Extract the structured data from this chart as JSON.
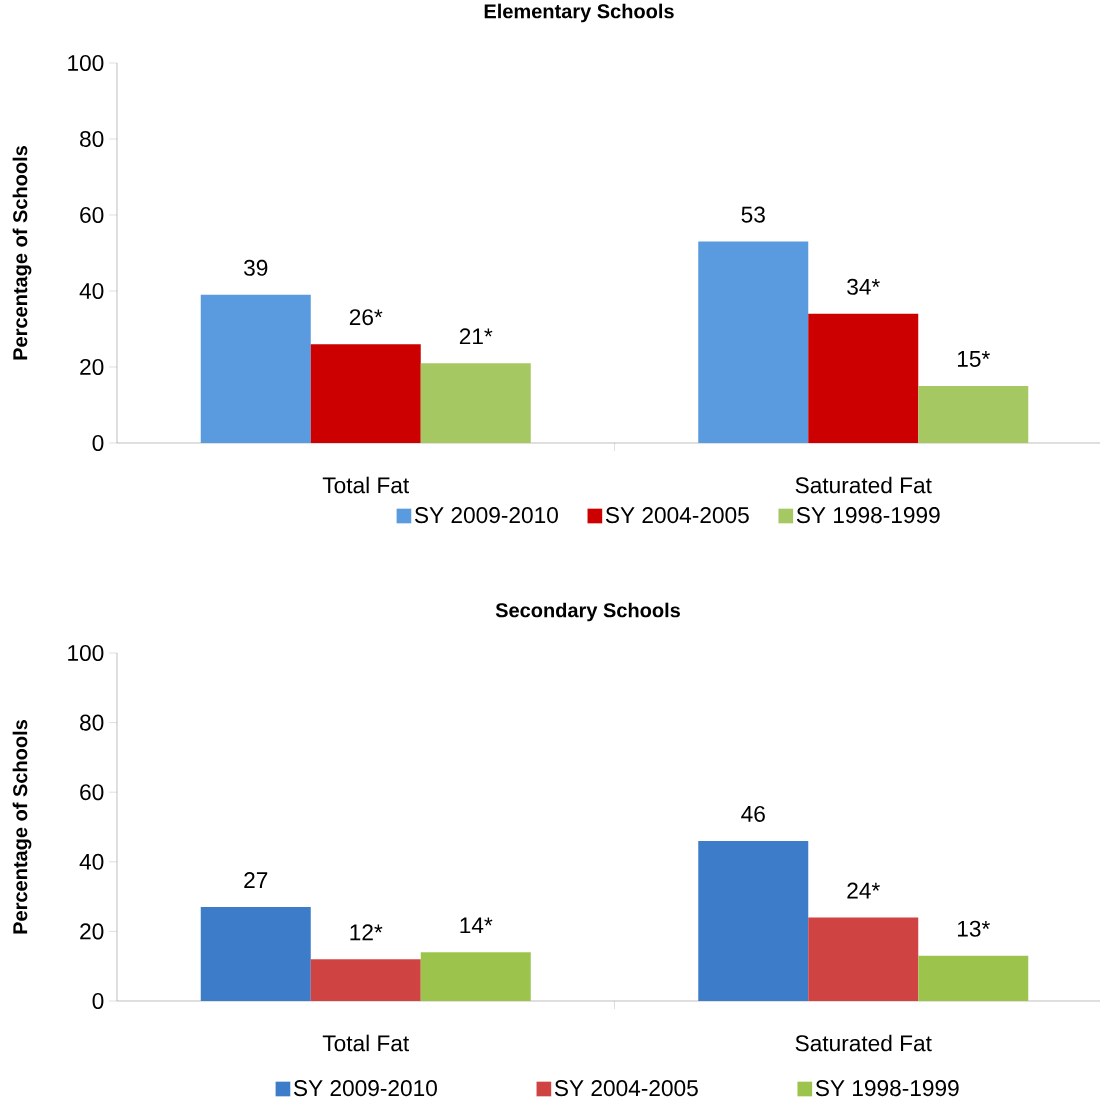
{
  "chart_data": [
    {
      "type": "bar",
      "title": "Elementary Schools",
      "ylabel": "Percentage of Schools",
      "categories": [
        "Total Fat",
        "Saturated Fat"
      ],
      "ylim": [
        0,
        100
      ],
      "yticks": [
        0,
        20,
        40,
        60,
        80,
        100
      ],
      "legend": "bottom",
      "series": [
        {
          "name": "SY 2009-2010",
          "color": "#5a9ade",
          "values": [
            39,
            53
          ],
          "value_labels": [
            "39",
            "53"
          ]
        },
        {
          "name": "SY 2004-2005",
          "color": "#cc0000",
          "values": [
            26,
            34
          ],
          "value_labels": [
            "26*",
            "34*"
          ]
        },
        {
          "name": "SY 1998-1999",
          "color": "#a5c863",
          "values": [
            21,
            15
          ],
          "value_labels": [
            "21*",
            "15*"
          ]
        }
      ]
    },
    {
      "type": "bar",
      "title": "Secondary Schools",
      "ylabel": "Percentage of Schools",
      "categories": [
        "Total Fat",
        "Saturated Fat"
      ],
      "ylim": [
        0,
        100
      ],
      "yticks": [
        0,
        20,
        40,
        60,
        80,
        100
      ],
      "legend": "bottom",
      "series": [
        {
          "name": "SY 2009-2010",
          "color": "#3d7cc9",
          "values": [
            27,
            46
          ],
          "value_labels": [
            "27",
            "46"
          ]
        },
        {
          "name": "SY 2004-2005",
          "color": "#d04343",
          "values": [
            12,
            24
          ],
          "value_labels": [
            "12*",
            "24*"
          ]
        },
        {
          "name": "SY 1998-1999",
          "color": "#9cc44d",
          "values": [
            14,
            13
          ],
          "value_labels": [
            "14*",
            "13*"
          ]
        }
      ]
    }
  ]
}
